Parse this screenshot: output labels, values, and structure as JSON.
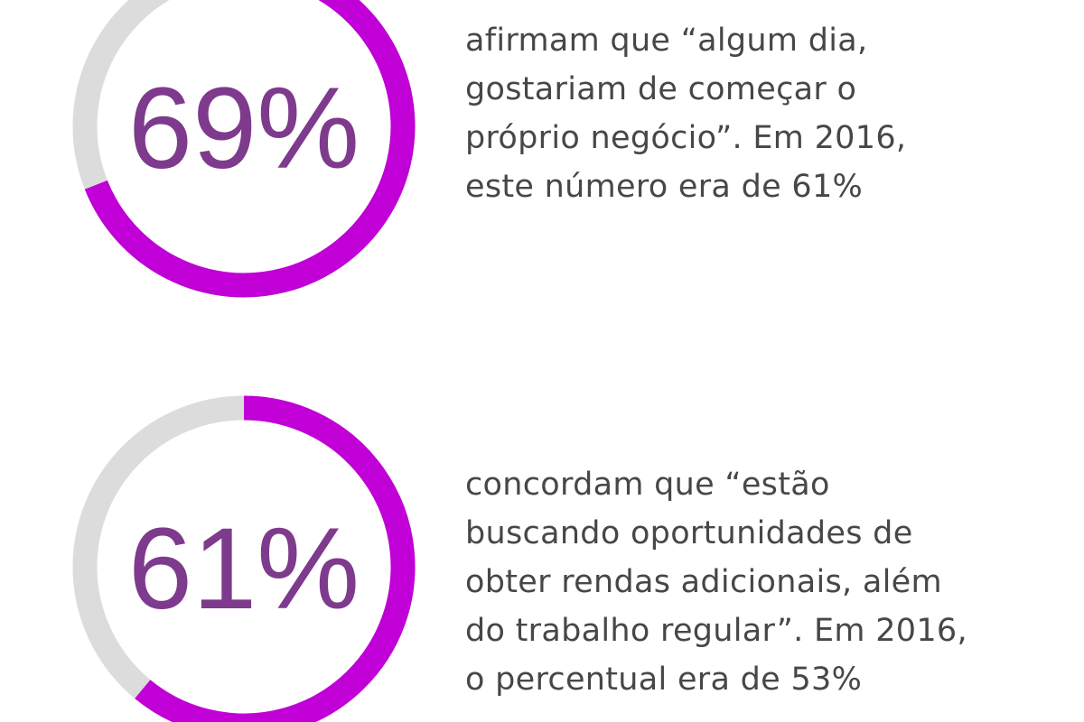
{
  "chart_data": {
    "type": "donut",
    "colors": {
      "fill": "#c000d6",
      "track": "#dcdcdc",
      "label": "#7e3a8c",
      "text": "#474747"
    },
    "items": [
      {
        "value": 69,
        "label": "69%",
        "description_lines": [
          "afirmam que “algum dia,",
          "gostariam de começar o",
          "próprio negócio”. Em 2016,",
          "este número era de 61%"
        ]
      },
      {
        "value": 61,
        "label": "61%",
        "description_lines": [
          "concordam que “estão",
          "buscando oportunidades de",
          "obter rendas adicionais, além",
          "do trabalho regular”. Em 2016,",
          "o percentual era de 53%"
        ]
      }
    ]
  }
}
